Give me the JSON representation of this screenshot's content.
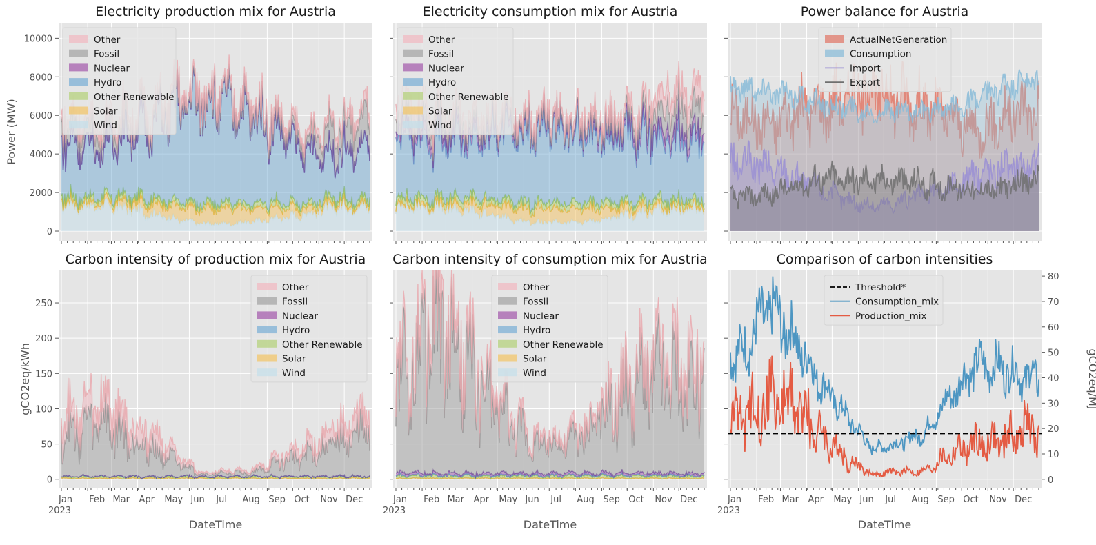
{
  "figure": {
    "xlabel": "DateTime",
    "month_ticks": [
      "Jan",
      "Feb",
      "Mar",
      "Apr",
      "May",
      "Jun",
      "Jul",
      "Aug",
      "Sep",
      "Oct",
      "Nov",
      "Dec"
    ],
    "year_label": "2023"
  },
  "colors": {
    "Other": "#f0b9c1",
    "Fossil": "#a5a5a5",
    "Nuclear": "#a55fae",
    "Hydro": "#7eb0d6",
    "Other Renewable": "#b5d27e",
    "Solar": "#f2c56b",
    "Wind": "#c6dfe9",
    "Other_line": "#e8a9ae",
    "Fossil_line": "#8d8d8d",
    "Nuclear_line": "#6a3d9a",
    "Hydro_line": "#5b8ec7",
    "OtherRen_line": "#8fbc4a",
    "Solar_line": "#e7ae2f",
    "ActualNetGeneration": "#e07a6b",
    "Consumption": "#8bbcd8",
    "Import": "#9a8fd3",
    "Export": "#6f6f6f",
    "Consumption_mix": "#4d96c2",
    "Production_mix": "#e45b43",
    "Threshold": "#000000",
    "axes_bg": "#e5e5e5",
    "grid": "#ffffff"
  },
  "chart_data": [
    {
      "type": "area",
      "title": "Electricity production mix for Austria",
      "xlabel": "",
      "ylabel": "Power (MW)",
      "ylim": [
        -500,
        10800
      ],
      "yticks": [
        "0",
        "2000",
        "4000",
        "6000",
        "8000",
        "10000"
      ],
      "stacked": true,
      "legend_position": "upper left",
      "legend": [
        "Other",
        "Fossil",
        "Nuclear",
        "Hydro",
        "Other Renewable",
        "Solar",
        "Wind"
      ],
      "x": [
        "2023-01",
        "2023-02",
        "2023-03",
        "2023-04",
        "2023-05",
        "2023-06",
        "2023-07",
        "2023-08",
        "2023-09",
        "2023-10",
        "2023-11",
        "2023-12"
      ],
      "series": [
        {
          "name": "Wind",
          "values": [
            1400,
            1300,
            1200,
            900,
            600,
            400,
            400,
            500,
            700,
            900,
            1200,
            1300
          ]
        },
        {
          "name": "Solar",
          "values": [
            150,
            200,
            350,
            550,
            700,
            750,
            800,
            700,
            550,
            350,
            200,
            150
          ]
        },
        {
          "name": "Other Renewable",
          "values": [
            250,
            250,
            250,
            250,
            250,
            250,
            250,
            250,
            250,
            250,
            250,
            250
          ]
        },
        {
          "name": "Hydro",
          "values": [
            2900,
            2600,
            3300,
            4000,
            5000,
            5500,
            5100,
            4600,
            3700,
            2700,
            2300,
            2700
          ]
        },
        {
          "name": "Nuclear",
          "values": [
            0,
            0,
            0,
            0,
            0,
            0,
            0,
            0,
            0,
            0,
            0,
            0
          ]
        },
        {
          "name": "Fossil",
          "values": [
            900,
            800,
            600,
            300,
            100,
            80,
            80,
            150,
            300,
            500,
            1300,
            1400
          ]
        },
        {
          "name": "Other",
          "values": [
            400,
            400,
            400,
            350,
            350,
            350,
            350,
            350,
            350,
            350,
            400,
            450
          ]
        }
      ]
    },
    {
      "type": "area",
      "title": "Electricity consumption mix for Austria",
      "xlabel": "",
      "ylabel": "",
      "ylim": [
        -500,
        10800
      ],
      "stacked": true,
      "legend_position": "upper left",
      "legend": [
        "Other",
        "Fossil",
        "Nuclear",
        "Hydro",
        "Other Renewable",
        "Solar",
        "Wind"
      ],
      "x": [
        "2023-01",
        "2023-02",
        "2023-03",
        "2023-04",
        "2023-05",
        "2023-06",
        "2023-07",
        "2023-08",
        "2023-09",
        "2023-10",
        "2023-11",
        "2023-12"
      ],
      "series": [
        {
          "name": "Wind",
          "values": [
            1300,
            1200,
            1100,
            900,
            600,
            450,
            450,
            500,
            700,
            900,
            1100,
            1200
          ]
        },
        {
          "name": "Solar",
          "values": [
            150,
            200,
            350,
            500,
            650,
            700,
            700,
            650,
            500,
            350,
            200,
            150
          ]
        },
        {
          "name": "Other Renewable",
          "values": [
            300,
            300,
            300,
            300,
            300,
            300,
            300,
            300,
            300,
            300,
            300,
            300
          ]
        },
        {
          "name": "Hydro",
          "values": [
            3200,
            3000,
            3000,
            3300,
            3700,
            3800,
            3700,
            3600,
            3400,
            3200,
            3000,
            3100
          ]
        },
        {
          "name": "Nuclear",
          "values": [
            400,
            400,
            400,
            350,
            300,
            250,
            250,
            300,
            350,
            400,
            450,
            450
          ]
        },
        {
          "name": "Fossil",
          "values": [
            700,
            600,
            400,
            250,
            100,
            60,
            60,
            120,
            250,
            500,
            1100,
            1300
          ]
        },
        {
          "name": "Other",
          "values": [
            700,
            650,
            550,
            500,
            450,
            400,
            400,
            400,
            450,
            600,
            900,
            1000
          ]
        }
      ]
    },
    {
      "type": "line",
      "title": "Power balance for Austria",
      "xlabel": "",
      "ylabel": "",
      "ylim": [
        -500,
        10800
      ],
      "legend_position": "upper center",
      "legend": [
        "ActualNetGeneration",
        "Consumption",
        "Import",
        "Export"
      ],
      "x": [
        "2023-01",
        "2023-02",
        "2023-03",
        "2023-04",
        "2023-05",
        "2023-06",
        "2023-07",
        "2023-08",
        "2023-09",
        "2023-10",
        "2023-11",
        "2023-12"
      ],
      "series": [
        {
          "name": "ActualNetGeneration",
          "values": [
            6000,
            5500,
            6200,
            6400,
            7000,
            7300,
            7000,
            6500,
            5900,
            5200,
            5800,
            6400
          ]
        },
        {
          "name": "Consumption",
          "values": [
            7500,
            7300,
            7000,
            6600,
            6400,
            6200,
            6200,
            6200,
            6300,
            6800,
            7400,
            7700
          ]
        },
        {
          "name": "Import",
          "values": [
            3500,
            3300,
            2900,
            2200,
            1600,
            1300,
            1500,
            1900,
            2300,
            2900,
            3300,
            3400
          ]
        },
        {
          "name": "Export",
          "values": [
            1800,
            1900,
            2300,
            2700,
            2700,
            2600,
            2600,
            2500,
            2300,
            2100,
            2200,
            2600
          ]
        }
      ]
    },
    {
      "type": "area",
      "title": "Carbon intensity of production mix for Austria",
      "xlabel": "DateTime",
      "ylabel": "gCO2eq/kWh",
      "ylim": [
        -12,
        296
      ],
      "yticks": [
        "0",
        "50",
        "100",
        "150",
        "200",
        "250"
      ],
      "stacked": true,
      "legend_position": "upper right",
      "legend": [
        "Other",
        "Fossil",
        "Nuclear",
        "Hydro",
        "Other Renewable",
        "Solar",
        "Wind"
      ],
      "x": [
        "2023-01",
        "2023-02",
        "2023-03",
        "2023-04",
        "2023-05",
        "2023-06",
        "2023-07",
        "2023-08",
        "2023-09",
        "2023-10",
        "2023-11",
        "2023-12"
      ],
      "series": [
        {
          "name": "Wind",
          "values": [
            0.5,
            0.5,
            0.5,
            0.5,
            0.5,
            0.5,
            0.5,
            0.5,
            0.5,
            0.5,
            0.5,
            0.5
          ]
        },
        {
          "name": "Solar",
          "values": [
            1,
            1,
            1,
            1,
            1,
            1,
            1,
            1,
            1,
            1,
            1,
            1
          ]
        },
        {
          "name": "Other Renewable",
          "values": [
            2,
            2,
            2,
            2,
            2,
            2,
            2,
            2,
            2,
            2,
            2,
            2
          ]
        },
        {
          "name": "Hydro",
          "values": [
            0.5,
            0.5,
            0.5,
            0.5,
            0.5,
            0.5,
            0.5,
            0.5,
            0.5,
            0.5,
            0.5,
            0.5
          ]
        },
        {
          "name": "Nuclear",
          "values": [
            0,
            0,
            0,
            0,
            0,
            0,
            0,
            0,
            0,
            0,
            0,
            0
          ]
        },
        {
          "name": "Fossil",
          "values": [
            62,
            80,
            55,
            40,
            20,
            3,
            5,
            6,
            20,
            30,
            45,
            60
          ]
        },
        {
          "name": "Other",
          "values": [
            25,
            28,
            25,
            22,
            10,
            2,
            3,
            4,
            8,
            12,
            20,
            25
          ]
        }
      ]
    },
    {
      "type": "area",
      "title": "Carbon intensity of consumption mix for Austria",
      "xlabel": "DateTime",
      "ylabel": "",
      "ylim": [
        -12,
        296
      ],
      "stacked": true,
      "legend_position": "upper center",
      "legend": [
        "Other",
        "Fossil",
        "Nuclear",
        "Hydro",
        "Other Renewable",
        "Solar",
        "Wind"
      ],
      "x": [
        "2023-01",
        "2023-02",
        "2023-03",
        "2023-04",
        "2023-05",
        "2023-06",
        "2023-07",
        "2023-08",
        "2023-09",
        "2023-10",
        "2023-11",
        "2023-12"
      ],
      "series": [
        {
          "name": "Wind",
          "values": [
            0.5,
            0.5,
            0.5,
            0.5,
            0.5,
            0.5,
            0.5,
            0.5,
            0.5,
            0.5,
            0.5,
            0.5
          ]
        },
        {
          "name": "Solar",
          "values": [
            1,
            1,
            1,
            1,
            1,
            1,
            1,
            1,
            1,
            1,
            1,
            1
          ]
        },
        {
          "name": "Other Renewable",
          "values": [
            3,
            3,
            3,
            3,
            3,
            3,
            3,
            3,
            3,
            3,
            3,
            3
          ]
        },
        {
          "name": "Hydro",
          "values": [
            1,
            1,
            1,
            1,
            1,
            1,
            1,
            1,
            1,
            1,
            1,
            1
          ]
        },
        {
          "name": "Nuclear",
          "values": [
            3,
            3,
            3,
            3,
            3,
            3,
            3,
            3,
            3,
            3,
            3,
            3
          ]
        },
        {
          "name": "Fossil",
          "values": [
            140,
            200,
            160,
            110,
            70,
            40,
            45,
            60,
            100,
            130,
            140,
            130
          ]
        },
        {
          "name": "Other",
          "values": [
            20,
            25,
            22,
            18,
            12,
            8,
            8,
            10,
            15,
            20,
            25,
            25
          ]
        }
      ]
    },
    {
      "type": "line",
      "title": "Comparison of carbon intensities",
      "xlabel": "DateTime",
      "ylabel": "",
      "y2label": "gCO2eq/MJ",
      "ylim": [
        -12,
        296
      ],
      "y2lim": [
        -3.3,
        82.2
      ],
      "y2ticks": [
        "0",
        "10",
        "20",
        "30",
        "40",
        "50",
        "60",
        "70",
        "80"
      ],
      "legend_position": "upper center",
      "legend": [
        "Threshold*",
        "Consumption_mix",
        "Production_mix"
      ],
      "x": [
        "2023-01",
        "2023-02",
        "2023-03",
        "2023-04",
        "2023-05",
        "2023-06",
        "2023-07",
        "2023-08",
        "2023-09",
        "2023-10",
        "2023-11",
        "2023-12"
      ],
      "series": [
        {
          "name": "Threshold*",
          "values": [
            18,
            18,
            18,
            18,
            18,
            18,
            18,
            18,
            18,
            18,
            18,
            18
          ]
        },
        {
          "name": "Consumption_mix",
          "values": [
            50,
            68,
            55,
            38,
            25,
            12,
            14,
            18,
            32,
            45,
            44,
            40
          ]
        },
        {
          "name": "Production_mix",
          "values": [
            25,
            33,
            30,
            18,
            8,
            2,
            3,
            3,
            10,
            14,
            15,
            20
          ]
        }
      ]
    }
  ]
}
